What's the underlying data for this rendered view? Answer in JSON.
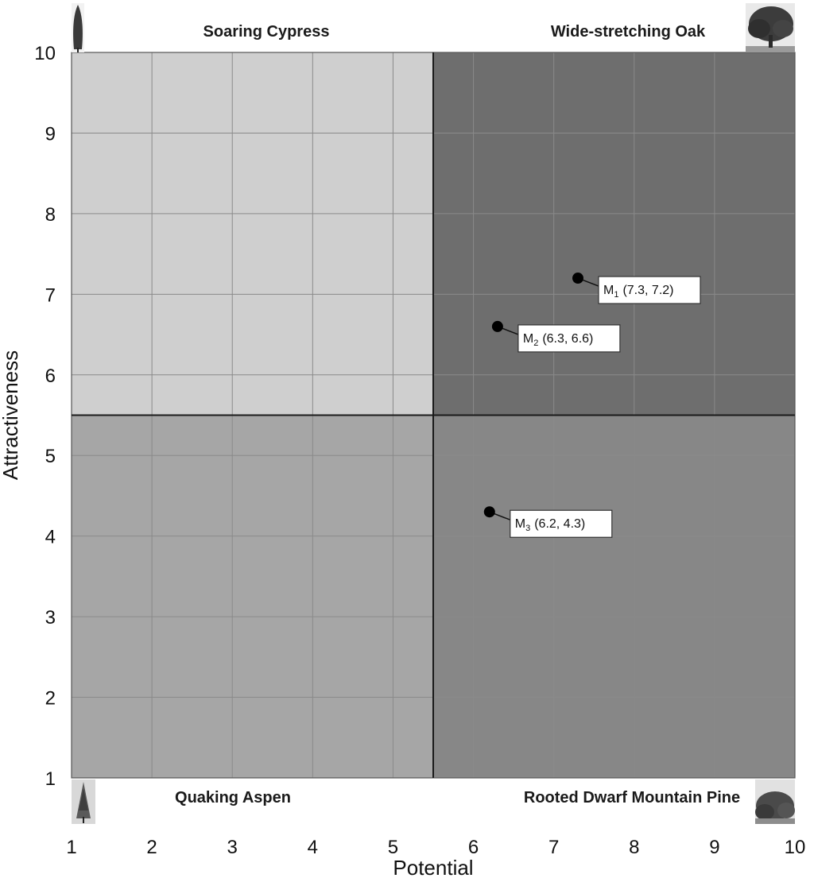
{
  "chart_data": {
    "type": "scatter",
    "xlabel": "Potential",
    "ylabel": "Attractiveness",
    "xlim": [
      1,
      10
    ],
    "ylim": [
      1,
      10
    ],
    "x_ticks": [
      1,
      2,
      3,
      4,
      5,
      6,
      7,
      8,
      9,
      10
    ],
    "y_ticks": [
      1,
      2,
      3,
      4,
      5,
      6,
      7,
      8,
      9,
      10
    ],
    "grid": true,
    "divider": {
      "x": 5.5,
      "y": 5.5
    },
    "quadrants": [
      {
        "name": "Soaring Cypress",
        "position": "top-left",
        "color": "#cfcfcf"
      },
      {
        "name": "Wide-stretching Oak",
        "position": "top-right",
        "color": "#6e6e6e"
      },
      {
        "name": "Quaking Aspen",
        "position": "bottom-left",
        "color": "#a6a6a6"
      },
      {
        "name": "Rooted Dwarf Mountain Pine",
        "position": "bottom-right",
        "color": "#878787"
      }
    ],
    "points": [
      {
        "label": "M",
        "sub": "1",
        "x": 7.3,
        "y": 7.2,
        "text": "(7.3, 7.2)"
      },
      {
        "label": "M",
        "sub": "2",
        "x": 6.3,
        "y": 6.6,
        "text": "(6.3, 6.6)"
      },
      {
        "label": "M",
        "sub": "3",
        "x": 6.2,
        "y": 4.3,
        "text": "(6.2, 4.3)"
      }
    ]
  }
}
